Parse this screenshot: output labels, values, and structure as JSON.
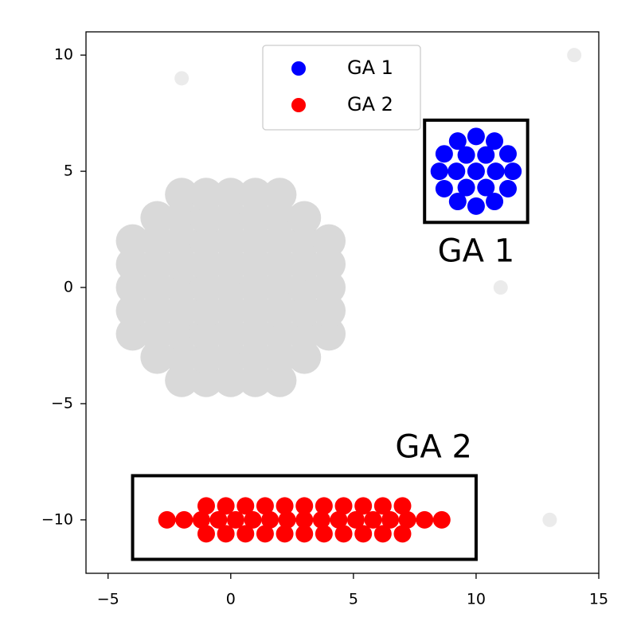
{
  "chart_data": {
    "type": "scatter",
    "xlim": [
      -5.9,
      15
    ],
    "ylim": [
      -12.3,
      11.0
    ],
    "xticks": [
      {
        "value": -5,
        "label": "−5"
      },
      0,
      5,
      10,
      15
    ],
    "yticks": [
      {
        "value": -10,
        "label": "−10"
      },
      {
        "value": -5,
        "label": "−5"
      },
      0,
      5,
      10
    ],
    "grid": false,
    "legend": "upper center",
    "series": [
      {
        "color": "#d9d9d9",
        "x": [
          -4,
          -4,
          -4,
          -4,
          -4,
          -3,
          -3,
          -3,
          -3,
          -3,
          -3,
          -3,
          -2,
          -2,
          -2,
          -2,
          -2,
          -2,
          -2,
          -2,
          -2,
          -1,
          -1,
          -1,
          -1,
          -1,
          -1,
          -1,
          -1,
          -1,
          0,
          0,
          0,
          0,
          0,
          0,
          0,
          0,
          0,
          1,
          1,
          1,
          1,
          1,
          1,
          1,
          1,
          1,
          2,
          2,
          2,
          2,
          2,
          2,
          2,
          2,
          2,
          3,
          3,
          3,
          3,
          3,
          3,
          3,
          4,
          4,
          4,
          4,
          4
        ],
        "y": [
          -2,
          -1,
          0,
          1,
          2,
          -3,
          -2,
          -1,
          0,
          1,
          2,
          3,
          -4,
          -3,
          -2,
          -1,
          0,
          1,
          2,
          3,
          4,
          -4,
          -3,
          -2,
          -1,
          0,
          1,
          2,
          3,
          4,
          -4,
          -3,
          -2,
          -1,
          0,
          1,
          2,
          3,
          4,
          -4,
          -3,
          -2,
          -1,
          0,
          1,
          2,
          3,
          4,
          -4,
          -3,
          -2,
          -1,
          0,
          1,
          2,
          3,
          4,
          -3,
          -2,
          -1,
          0,
          1,
          2,
          3,
          -2,
          -1,
          0,
          1,
          2
        ]
      },
      {
        "color": "#ebebeb",
        "x": [
          -2,
          14,
          11,
          13
        ],
        "y": [
          9,
          10,
          0,
          -10
        ]
      },
      {
        "name": "GA 1",
        "color": "#0000ff",
        "x": [
          10,
          10.8,
          10.4,
          9.6,
          9.2,
          9.6,
          10.4,
          11.5,
          11.3,
          10.75,
          10,
          9.25,
          8.7,
          8.5,
          8.7,
          9.25,
          10,
          10.75,
          11.3
        ],
        "y": [
          5,
          5,
          5.7,
          5.7,
          5,
          4.3,
          4.3,
          5,
          5.75,
          6.3,
          6.5,
          6.3,
          5.75,
          5,
          4.25,
          3.7,
          3.5,
          3.7,
          4.25
        ]
      },
      {
        "name": "GA 2",
        "color": "#ff0000",
        "x": [
          -2.6,
          -1.9,
          -1.2,
          -0.5,
          0.2,
          0.9,
          1.6,
          2.3,
          3,
          3.7,
          4.4,
          5.1,
          5.8,
          6.5,
          7.2,
          7.9,
          8.6,
          -1,
          -0.2,
          0.6,
          1.4,
          2.2,
          3,
          3.8,
          4.6,
          5.4,
          6.2,
          7,
          -1,
          -0.2,
          0.6,
          1.4,
          2.2,
          3,
          3.8,
          4.6,
          5.4,
          6.2,
          7
        ],
        "y": [
          -10,
          -10,
          -10,
          -10,
          -10,
          -10,
          -10,
          -10,
          -10,
          -10,
          -10,
          -10,
          -10,
          -10,
          -10,
          -10,
          -10,
          -9.4,
          -9.4,
          -9.4,
          -9.4,
          -9.4,
          -9.4,
          -9.4,
          -9.4,
          -9.4,
          -9.4,
          -9.4,
          -10.6,
          -10.6,
          -10.6,
          -10.6,
          -10.6,
          -10.6,
          -10.6,
          -10.6,
          -10.6,
          -10.6,
          -10.6
        ]
      }
    ],
    "annotations": [
      {
        "text": "GA 1",
        "x0": 7.9,
        "x1": 12.1,
        "y0": 2.8,
        "y1": 7.2
      },
      {
        "text": "GA 2",
        "x0": -4,
        "x1": 10,
        "y0": -11.7,
        "y1": -8.1
      }
    ]
  }
}
